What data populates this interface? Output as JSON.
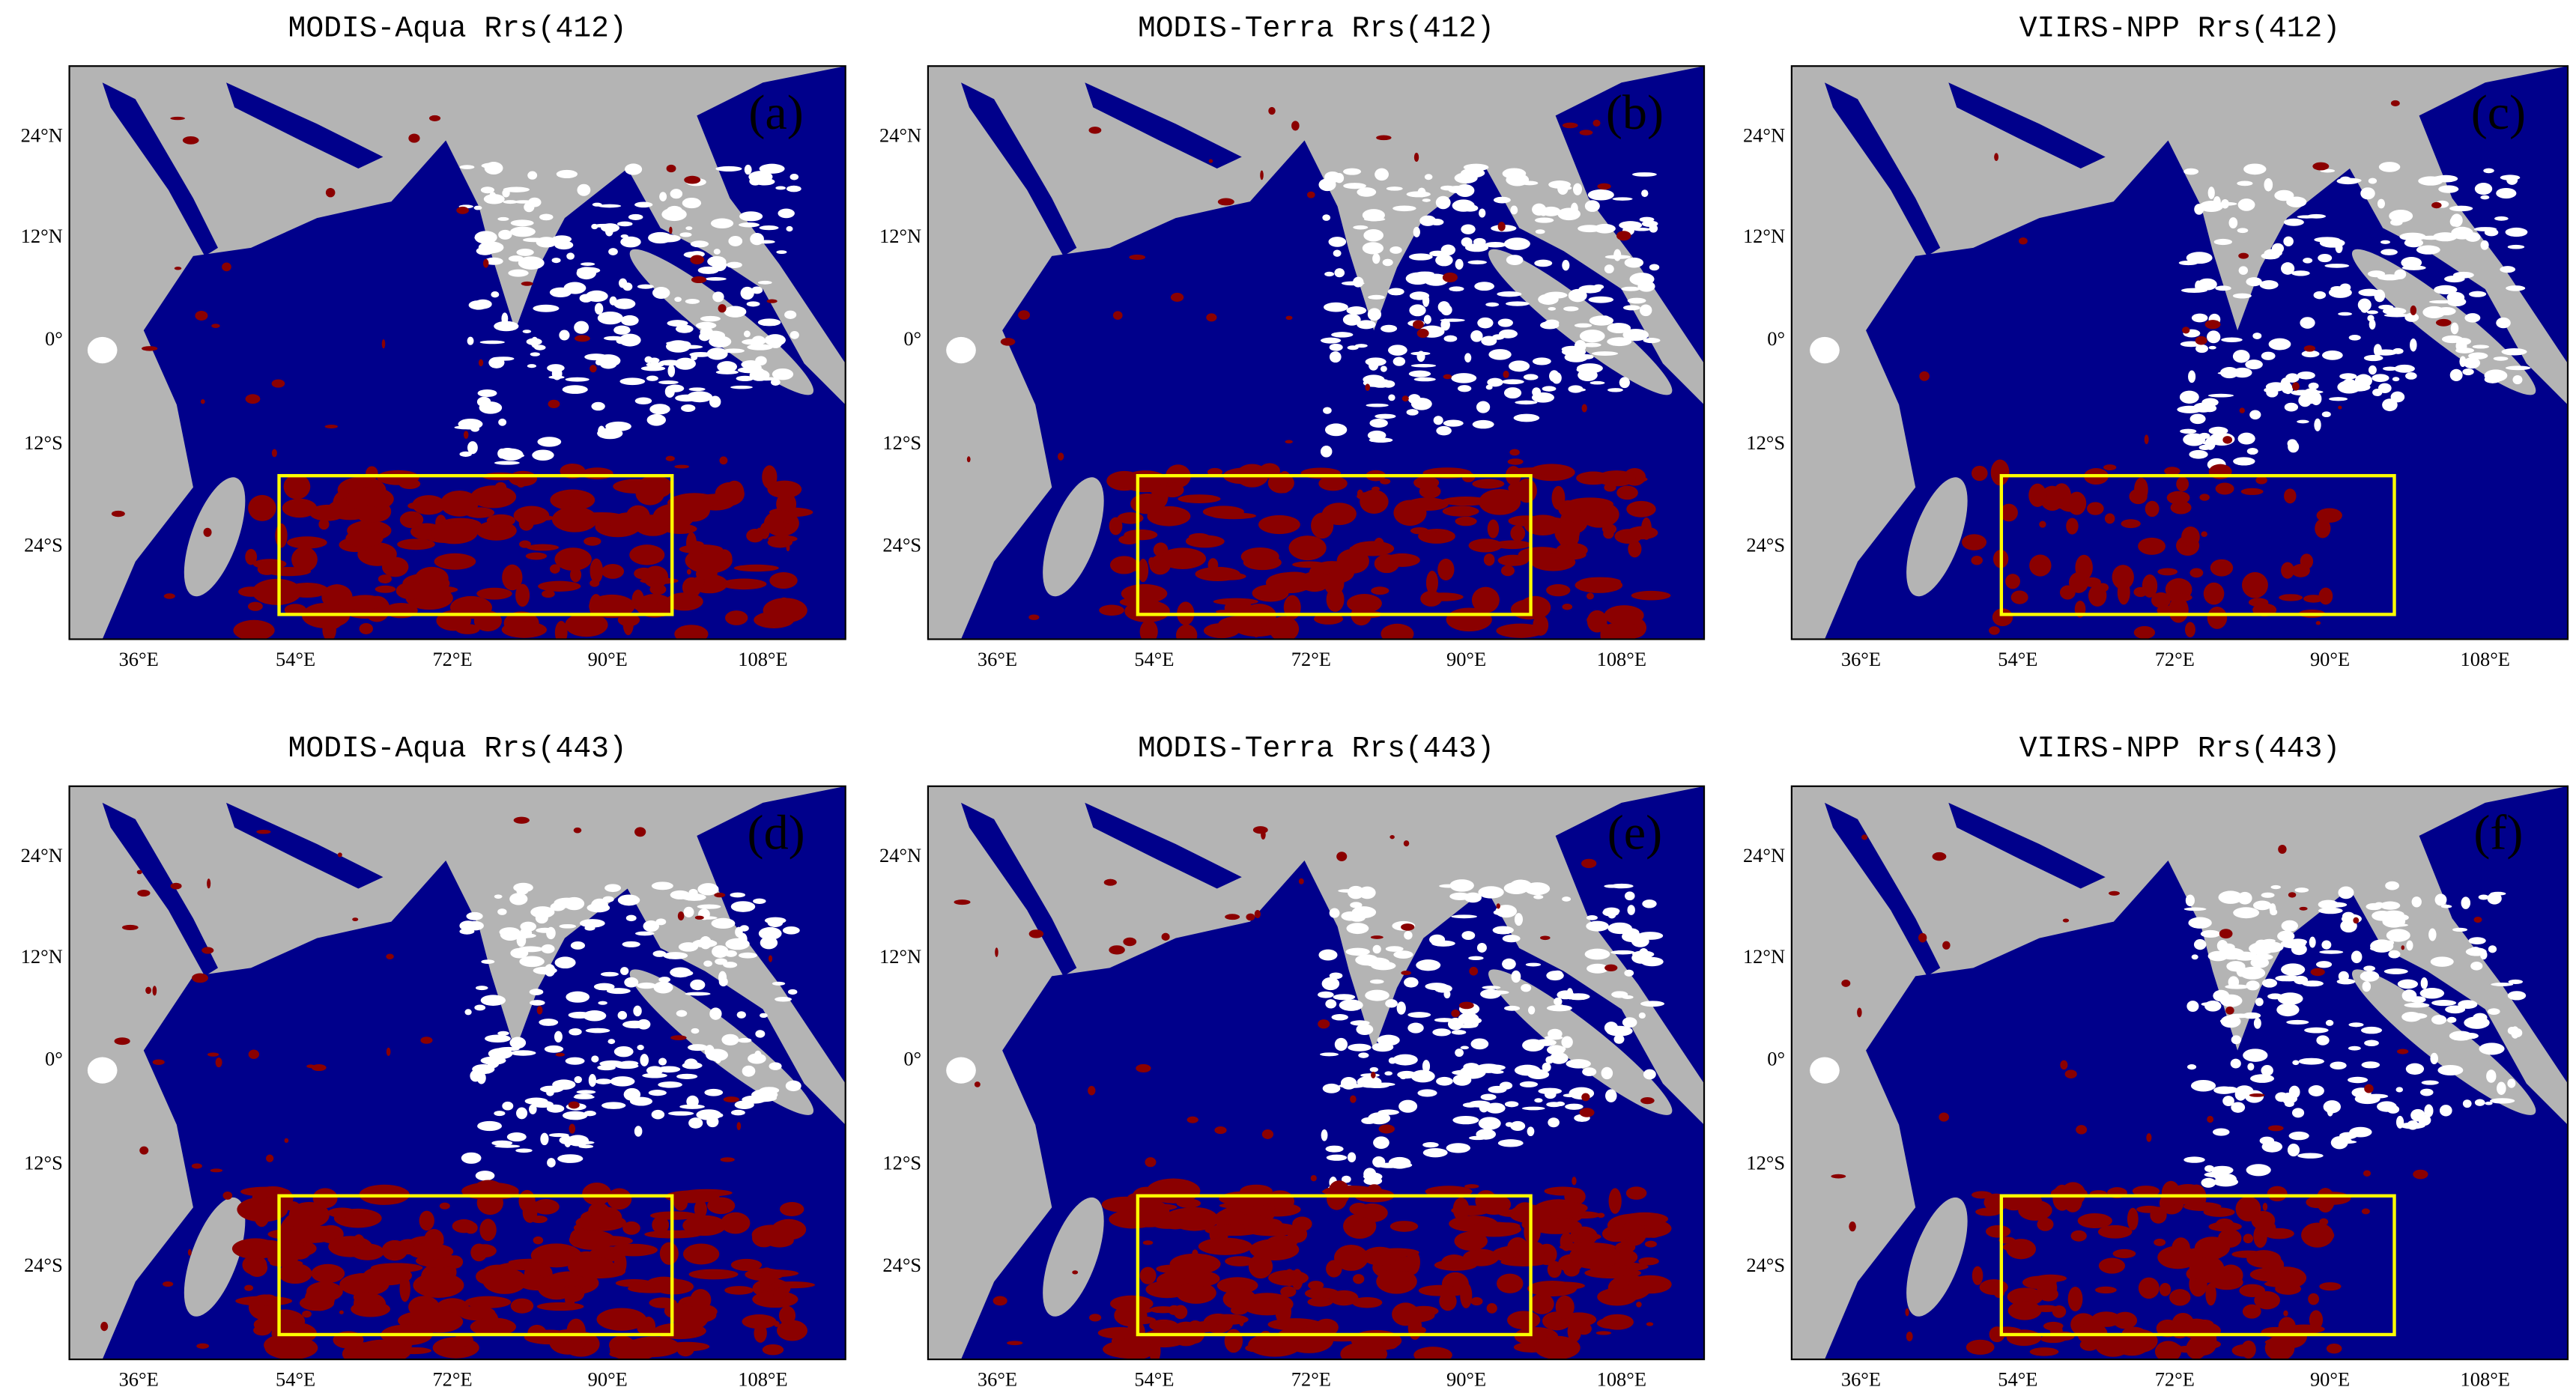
{
  "panels": [
    {
      "title": "MODIS-Aqua Rrs(412)",
      "tag": "(a)"
    },
    {
      "title": "MODIS-Terra Rrs(412)",
      "tag": "(b)"
    },
    {
      "title": "VIIRS-NPP Rrs(412)",
      "tag": "(c)"
    },
    {
      "title": "MODIS-Aqua Rrs(443)",
      "tag": "(d)"
    },
    {
      "title": "MODIS-Terra Rrs(443)",
      "tag": "(e)"
    },
    {
      "title": "VIIRS-NPP Rrs(443)",
      "tag": "(f)"
    }
  ],
  "lat_labels": [
    "24°N",
    "12°N",
    "0°",
    "12°S",
    "24°S"
  ],
  "lon_labels": [
    "36°E",
    "54°E",
    "72°E",
    "90°E",
    "108°E"
  ]
}
